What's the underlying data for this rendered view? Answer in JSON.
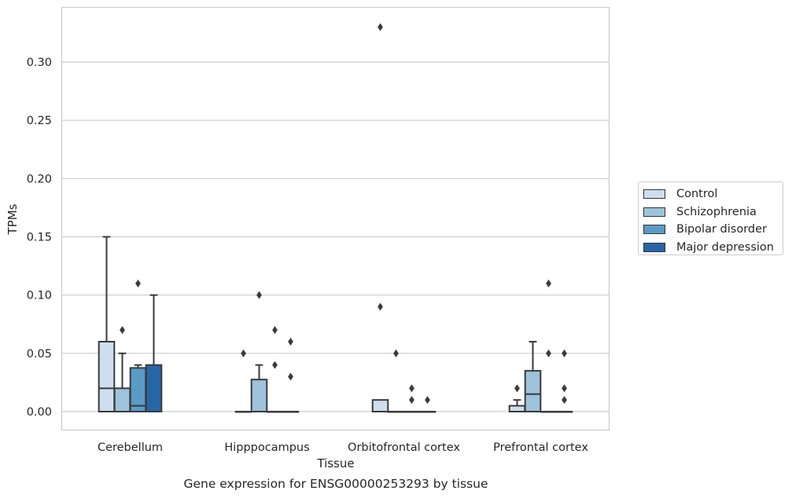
{
  "chart_data": {
    "type": "boxplot",
    "title": "Gene expression for ENSG00000253293 by tissue",
    "xlabel": "Tissue",
    "ylabel": "TPMs",
    "ylim": [
      -0.016,
      0.347
    ],
    "yticks": [
      "0.00",
      "0.05",
      "0.10",
      "0.15",
      "0.20",
      "0.25",
      "0.30"
    ],
    "grid": "horizontal",
    "legend_position": "right",
    "categories": [
      "Cerebellum",
      "Hipppocampus",
      "Orbitofrontal cortex",
      "Prefrontal cortex"
    ],
    "series": [
      {
        "name": "Control",
        "color": "#cfdeee",
        "boxes": [
          {
            "q1": 0.0,
            "median": 0.02,
            "q3": 0.06,
            "whisker_low": 0.0,
            "whisker_high": 0.15,
            "outliers": []
          },
          {
            "q1": 0.0,
            "median": 0.0,
            "q3": 0.0,
            "whisker_low": 0.0,
            "whisker_high": 0.0,
            "outliers": [
              0.05
            ]
          },
          {
            "q1": 0.0,
            "median": 0.0,
            "q3": 0.01,
            "whisker_low": 0.0,
            "whisker_high": 0.01,
            "outliers": [
              0.33,
              0.09
            ]
          },
          {
            "q1": 0.0,
            "median": 0.0,
            "q3": 0.005,
            "whisker_low": 0.0,
            "whisker_high": 0.01,
            "outliers": [
              0.02
            ]
          }
        ]
      },
      {
        "name": "Schizophrenia",
        "color": "#9dc3dd",
        "boxes": [
          {
            "q1": 0.0,
            "median": 0.0,
            "q3": 0.02,
            "whisker_low": 0.0,
            "whisker_high": 0.05,
            "outliers": [
              0.07
            ]
          },
          {
            "q1": 0.0,
            "median": 0.0,
            "q3": 0.0275,
            "whisker_low": 0.0,
            "whisker_high": 0.04,
            "outliers": [
              0.1
            ]
          },
          {
            "q1": 0.0,
            "median": 0.0,
            "q3": 0.0,
            "whisker_low": 0.0,
            "whisker_high": 0.0,
            "outliers": [
              0.05
            ]
          },
          {
            "q1": 0.0,
            "median": 0.015,
            "q3": 0.035,
            "whisker_low": 0.0,
            "whisker_high": 0.06,
            "outliers": []
          }
        ]
      },
      {
        "name": "Bipolar disorder",
        "color": "#5a9bc6",
        "boxes": [
          {
            "q1": 0.0,
            "median": 0.005,
            "q3": 0.0375,
            "whisker_low": 0.0,
            "whisker_high": 0.04,
            "outliers": [
              0.11
            ]
          },
          {
            "q1": 0.0,
            "median": 0.0,
            "q3": 0.0,
            "whisker_low": 0.0,
            "whisker_high": 0.0,
            "outliers": [
              0.07,
              0.04
            ]
          },
          {
            "q1": 0.0,
            "median": 0.0,
            "q3": 0.0,
            "whisker_low": 0.0,
            "whisker_high": 0.0,
            "outliers": [
              0.02,
              0.01
            ]
          },
          {
            "q1": 0.0,
            "median": 0.0,
            "q3": 0.0,
            "whisker_low": 0.0,
            "whisker_high": 0.0,
            "outliers": [
              0.11,
              0.05
            ]
          }
        ]
      },
      {
        "name": "Major depression",
        "color": "#2766a6",
        "boxes": [
          {
            "q1": 0.0,
            "median": 0.0,
            "q3": 0.04,
            "whisker_low": 0.0,
            "whisker_high": 0.1,
            "outliers": []
          },
          {
            "q1": 0.0,
            "median": 0.0,
            "q3": 0.0,
            "whisker_low": 0.0,
            "whisker_high": 0.0,
            "outliers": [
              0.06,
              0.03
            ]
          },
          {
            "q1": 0.0,
            "median": 0.0,
            "q3": 0.0,
            "whisker_low": 0.0,
            "whisker_high": 0.0,
            "outliers": [
              0.01
            ]
          },
          {
            "q1": 0.0,
            "median": 0.0,
            "q3": 0.0,
            "whisker_low": 0.0,
            "whisker_high": 0.0,
            "outliers": [
              0.05,
              0.02,
              0.01
            ]
          }
        ]
      }
    ]
  }
}
